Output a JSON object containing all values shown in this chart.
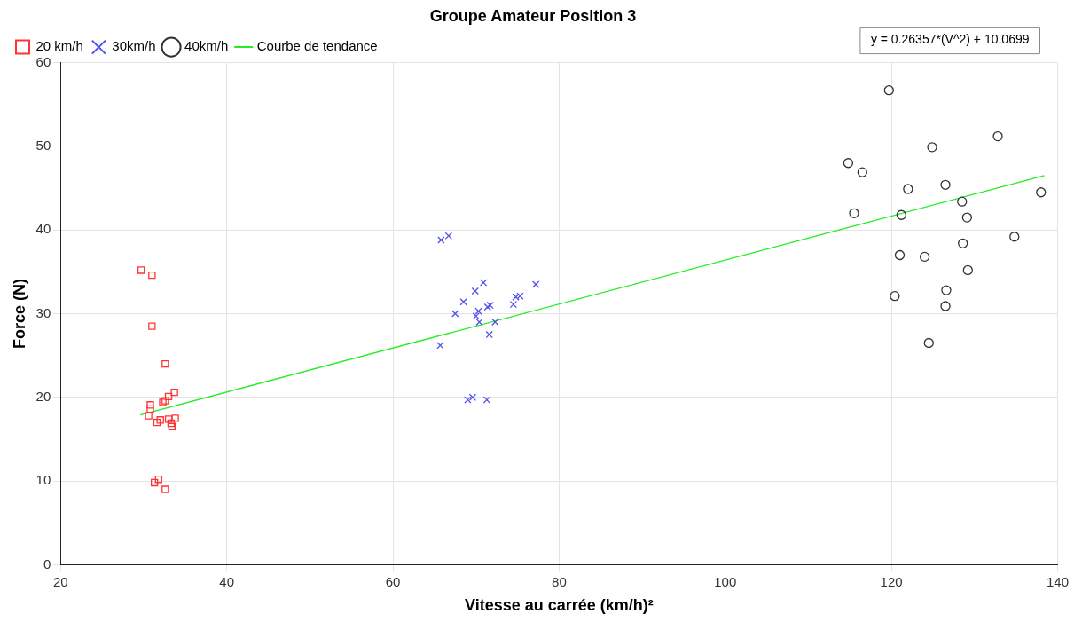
{
  "chart_data": {
    "type": "scatter",
    "title": "Groupe Amateur Position 3",
    "xlabel": "Vitesse au carrée (km/h)²",
    "ylabel": "Force (N)",
    "xlim": [
      20,
      140
    ],
    "xticks": [
      20,
      40,
      60,
      80,
      100,
      120,
      140
    ],
    "ylim": [
      0,
      60
    ],
    "yticks": [
      0,
      10,
      20,
      30,
      40,
      50,
      60
    ],
    "grid": true,
    "legend": "top left",
    "annotations": [
      "y = 0.26357*(V^2) + 10.0699"
    ],
    "series": [
      {
        "name": "20 km/h",
        "type": "scatter",
        "marker": "square",
        "color": "#ff3333",
        "x": [
          29.7,
          31.0,
          31.0,
          32.6,
          33.7,
          33.0,
          32.6,
          32.3,
          30.8,
          30.8,
          30.6,
          32.0,
          33.0,
          33.8,
          31.6,
          33.3,
          33.4,
          31.3,
          31.8,
          32.6
        ],
        "values": [
          35.2,
          34.6,
          28.5,
          24.0,
          20.6,
          20.1,
          19.6,
          19.4,
          19.1,
          18.6,
          17.8,
          17.3,
          17.4,
          17.5,
          17.0,
          16.9,
          16.5,
          9.8,
          10.2,
          9.0
        ]
      },
      {
        "name": "30km/h",
        "type": "scatter",
        "marker": "cross",
        "color": "#4f4fee",
        "x": [
          65.8,
          66.7,
          65.7,
          67.5,
          68.5,
          69.9,
          70.9,
          70.3,
          70.0,
          70.4,
          71.4,
          71.7,
          72.3,
          71.6,
          74.5,
          74.8,
          75.3,
          77.2,
          69.0,
          69.6,
          71.3
        ],
        "values": [
          38.8,
          39.3,
          26.2,
          30.0,
          31.4,
          32.7,
          33.7,
          30.3,
          29.7,
          29.0,
          30.8,
          31.0,
          29.0,
          27.5,
          31.1,
          32.0,
          32.1,
          33.5,
          19.7,
          20.0,
          19.7
        ]
      },
      {
        "name": "40km/h",
        "type": "scatter",
        "marker": "circle",
        "color": "#333333",
        "x": [
          119.7,
          132.8,
          124.9,
          114.8,
          116.5,
          122.0,
          126.5,
          138.0,
          128.5,
          115.5,
          121.2,
          129.1,
          134.8,
          128.6,
          121.0,
          124.0,
          129.2,
          126.6,
          120.4,
          126.5,
          124.5
        ],
        "values": [
          56.7,
          51.2,
          49.9,
          48.0,
          46.9,
          44.9,
          45.4,
          44.5,
          43.4,
          42.0,
          41.8,
          41.5,
          39.2,
          38.4,
          37.0,
          36.8,
          35.2,
          32.8,
          32.1,
          30.9,
          26.5
        ]
      },
      {
        "name": "Courbe de tendance",
        "type": "line",
        "marker": "none",
        "color": "#22ee22",
        "x": [
          29.6,
          138.4
        ],
        "values": [
          17.9,
          46.5
        ]
      }
    ]
  }
}
